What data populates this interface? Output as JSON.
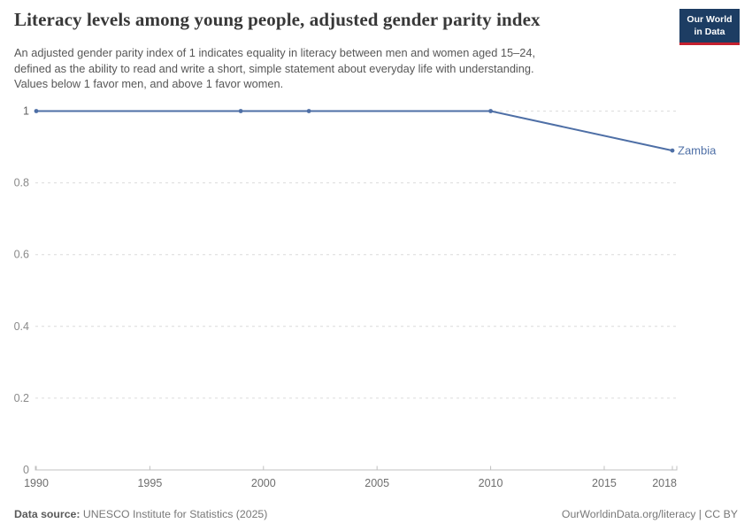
{
  "header": {
    "title": "Literacy levels among young people, adjusted gender parity index",
    "logo": {
      "line1": "Our World",
      "line2": "in Data"
    }
  },
  "subtitle": {
    "line1": "An adjusted gender parity index of 1 indicates equality in literacy between men and women aged 15–24,",
    "line2": "defined as the ability to read and write a short, simple statement about everyday life with understanding.",
    "line3": "Values below 1 favor men, and above 1 favor women."
  },
  "footer": {
    "source_label": "Data source:",
    "source_value": " UNESCO Institute for Statistics (2025)",
    "right_text": "OurWorldinData.org/literacy | CC BY"
  },
  "colors": {
    "accent_line": "#4e6fa6",
    "logo_bg": "#1d3d63",
    "logo_red": "#c4202e",
    "grid": "#dcdcdc",
    "axis": "#c0c0c0",
    "y_tick_label": "#8a8a8a",
    "y_tick_label_one": "#616161",
    "x_tick_label": "#6e6e6e"
  },
  "chart_data": {
    "type": "line",
    "title": "Literacy levels among young people, adjusted gender parity index",
    "xlabel": "",
    "ylabel": "",
    "xlim": [
      1990,
      2018
    ],
    "ylim": [
      0,
      1
    ],
    "grid": "horizontal-dashed",
    "legend_position": "end-of-line-label",
    "x_ticks": [
      1990,
      1995,
      2000,
      2005,
      2010,
      2015,
      2018
    ],
    "y_ticks": [
      0,
      0.2,
      0.4,
      0.6,
      0.8,
      1
    ],
    "series": [
      {
        "name": "Zambia",
        "color": "#4e6fa6",
        "points": [
          [
            1990,
            1
          ],
          [
            1999,
            1
          ],
          [
            2002,
            1
          ],
          [
            2010,
            1
          ],
          [
            2018,
            0.89
          ]
        ]
      }
    ]
  }
}
